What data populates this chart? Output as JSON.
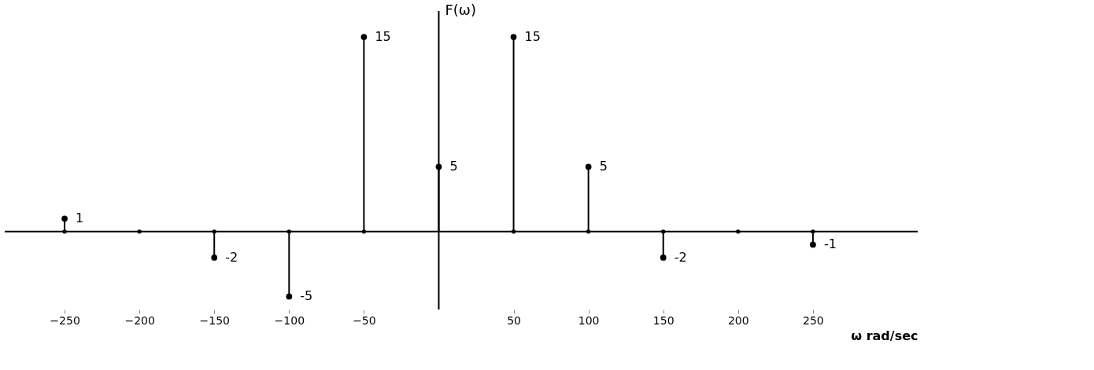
{
  "chart_data": {
    "type": "lollipop",
    "x": [
      -250,
      -150,
      -100,
      -50,
      0,
      50,
      100,
      150,
      250
    ],
    "values": [
      1,
      -2,
      -5,
      15,
      5,
      15,
      5,
      -2,
      -1
    ],
    "color": "#000000",
    "xlim": [
      -290,
      320
    ],
    "xticks": [
      -250,
      -200,
      -150,
      -100,
      -50,
      50,
      100,
      150,
      200,
      250
    ],
    "ylim": [
      -6,
      17
    ],
    "xlabel": "ω rad/sec",
    "ylabel": "F(ω)",
    "data_labels": true,
    "marker": "circle",
    "grid": false,
    "tick_labels": "x"
  }
}
